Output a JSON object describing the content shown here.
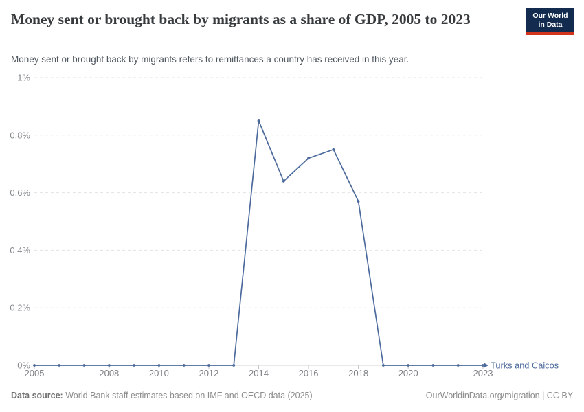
{
  "header": {
    "title": "Money sent or brought back by migrants as a share of GDP, 2005 to 2023",
    "subtitle": "Money sent or brought back by migrants refers to remittances a country has received in this year.",
    "logo": {
      "line1": "Our World",
      "line2": "in Data",
      "bg_color": "#122b4e",
      "accent_color": "#d2341c"
    }
  },
  "chart_data": {
    "type": "line",
    "title": "Money sent or brought back by migrants as a share of GDP, 2005 to 2023",
    "x": [
      2005,
      2006,
      2007,
      2008,
      2009,
      2010,
      2011,
      2012,
      2013,
      2014,
      2015,
      2016,
      2017,
      2018,
      2019,
      2020,
      2021,
      2022,
      2023
    ],
    "series": [
      {
        "name": "Turks and Caicos",
        "color": "#4c6a9c",
        "values": [
          0,
          0,
          0,
          0,
          0,
          0,
          0,
          0,
          0,
          0.85,
          0.64,
          0.72,
          0.75,
          0.57,
          0,
          0,
          0,
          0,
          0
        ]
      }
    ],
    "x_tick_labels": [
      2005,
      2008,
      2010,
      2012,
      2014,
      2016,
      2018,
      2020,
      2023
    ],
    "y_ticks": [
      {
        "v": 0,
        "label": "0%"
      },
      {
        "v": 0.2,
        "label": "0.2%"
      },
      {
        "v": 0.4,
        "label": "0.4%"
      },
      {
        "v": 0.6,
        "label": "0.6%"
      },
      {
        "v": 0.8,
        "label": "0.8%"
      },
      {
        "v": 1,
        "label": "1%"
      }
    ],
    "xlim": [
      2005,
      2023
    ],
    "ylim": [
      0,
      1
    ],
    "unit": "%",
    "grid": "horizontal-dashed",
    "legend_position": "end-of-line"
  },
  "footer": {
    "data_source_label": "Data source:",
    "data_source_text": "World Bank staff estimates based on IMF and OECD data (2025)",
    "credit": "OurWorldinData.org/migration | CC BY"
  }
}
